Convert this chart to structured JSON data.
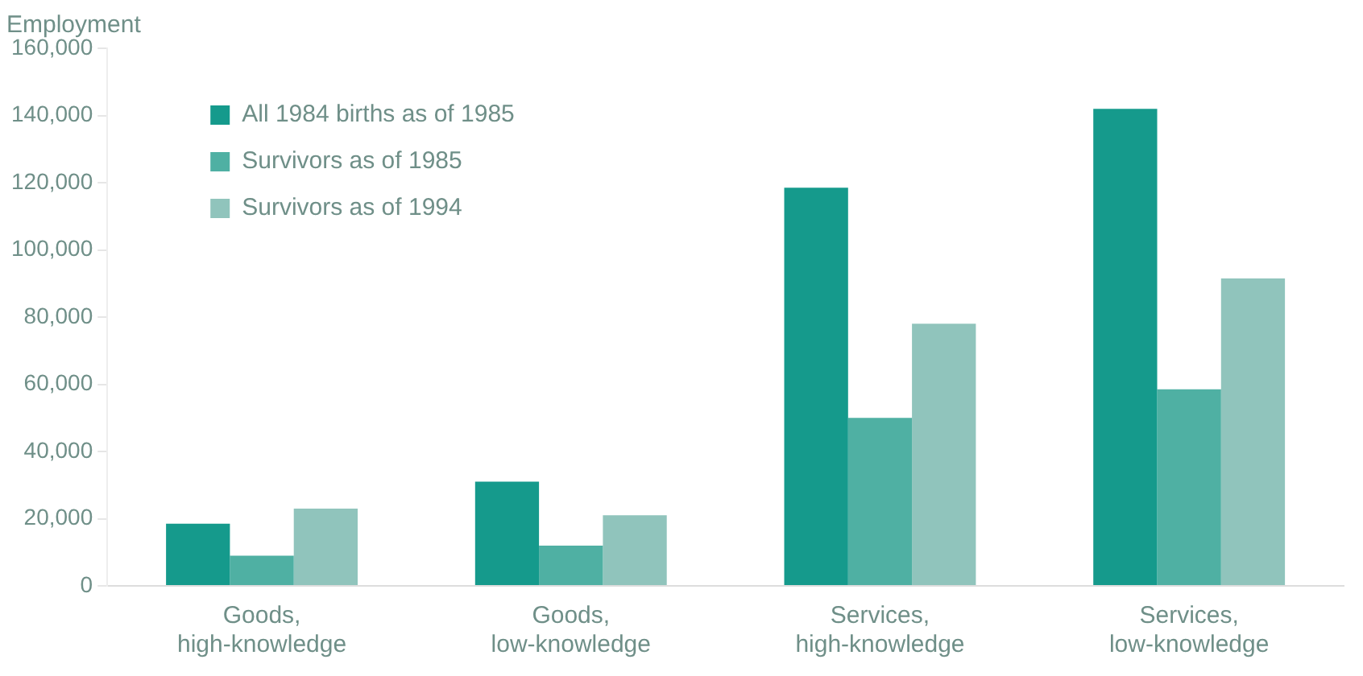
{
  "chart_data": {
    "type": "bar",
    "ylabel": "Employment",
    "categories": [
      "Goods,\nhigh-knowledge",
      "Goods,\nlow-knowledge",
      "Services,\nhigh-knowledge",
      "Services,\nlow-knowledge"
    ],
    "series": [
      {
        "name": "All 1984 births as of 1985",
        "color": "#159a8c",
        "values": [
          18500,
          31000,
          118500,
          142000
        ]
      },
      {
        "name": "Survivors as of 1985",
        "color": "#4fb0a3",
        "values": [
          9000,
          12000,
          50000,
          58500
        ]
      },
      {
        "name": "Survivors as of 1994",
        "color": "#90c4bc",
        "values": [
          23000,
          21000,
          78000,
          91500
        ]
      }
    ],
    "ylim": [
      0,
      160000
    ],
    "yticks": [
      0,
      {
        "value": 20000,
        "label": "20,000"
      },
      {
        "value": 40000,
        "label": "40,000"
      },
      {
        "value": 60000,
        "label": "60,000"
      },
      {
        "value": 80000,
        "label": "80,000"
      },
      {
        "value": 100000,
        "label": "100,000"
      },
      {
        "value": 120000,
        "label": "120,000"
      },
      {
        "value": 140000,
        "label": "140,000"
      },
      {
        "value": 160000,
        "label": "160,000"
      }
    ],
    "grid": false,
    "legend": "top left"
  }
}
